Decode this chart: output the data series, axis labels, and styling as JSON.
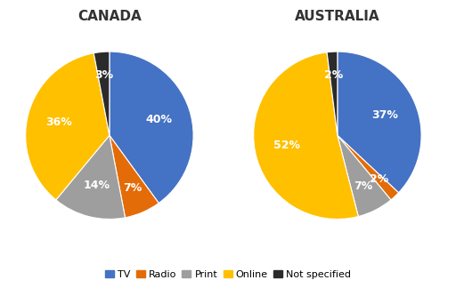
{
  "canada": {
    "title": "CANADA",
    "labels": [
      "TV",
      "Radio",
      "Print",
      "Online",
      "Not specified"
    ],
    "values": [
      40,
      7,
      14,
      36,
      3
    ],
    "colors": [
      "#4472c4",
      "#e36c09",
      "#9e9e9e",
      "#ffc000",
      "#2b2b2b"
    ],
    "startangle": 90
  },
  "australia": {
    "title": "AUSTRALIA",
    "labels": [
      "TV",
      "Radio",
      "Print",
      "Online",
      "Not specified"
    ],
    "values": [
      37,
      2,
      7,
      52,
      2
    ],
    "colors": [
      "#4472c4",
      "#e36c09",
      "#9e9e9e",
      "#ffc000",
      "#2b2b2b"
    ],
    "startangle": 90
  },
  "legend_labels": [
    "TV",
    "Radio",
    "Print",
    "Online",
    "Not specified"
  ],
  "legend_colors": [
    "#4472c4",
    "#e36c09",
    "#9e9e9e",
    "#ffc000",
    "#2b2b2b"
  ],
  "bg_color": "#ffffff",
  "title_fontsize": 11,
  "pct_fontsize": 9,
  "legend_fontsize": 8
}
